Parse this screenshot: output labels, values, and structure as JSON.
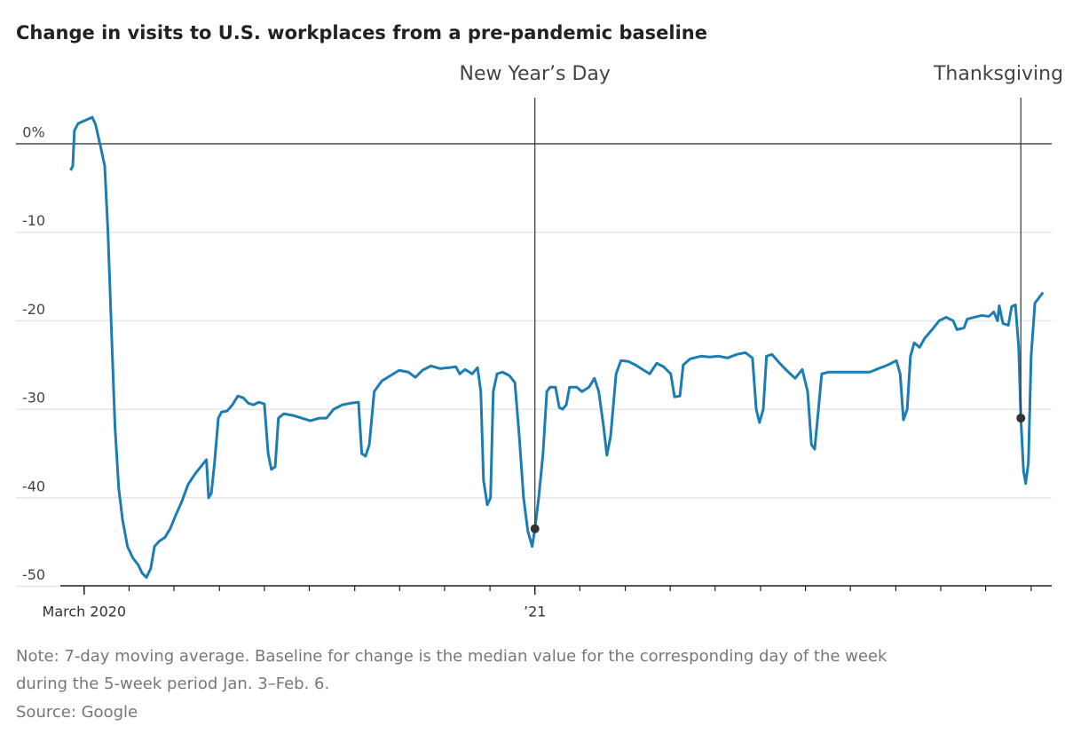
{
  "chart_data": {
    "type": "line",
    "title": "Change in visits to U.S. workplaces from a pre-pandemic baseline",
    "color": "#1c7db3",
    "xlim": [
      2020.041,
      2021.955
    ],
    "ylim": [
      -50.5,
      6
    ],
    "xticks": [
      {
        "value": 2020.167,
        "label": "March 2020"
      },
      {
        "value": 2021.0,
        "label": "’21"
      }
    ],
    "xminorticks": [
      2020.167,
      2020.25,
      2020.333,
      2020.417,
      2020.5,
      2020.583,
      2020.667,
      2020.75,
      2020.833,
      2020.917,
      2021.0,
      2021.083,
      2021.167,
      2021.25,
      2021.333,
      2021.417,
      2021.5,
      2021.583,
      2021.667,
      2021.75,
      2021.833,
      2021.917
    ],
    "yticks": [
      {
        "value": 0,
        "label": "0%"
      },
      -10,
      -20,
      -30,
      -40,
      -50
    ],
    "grid": true,
    "x": [
      2020.142,
      2020.146,
      2020.149,
      2020.156,
      2020.167,
      2020.182,
      2020.188,
      2020.198,
      2020.205,
      2020.211,
      2020.218,
      2020.224,
      2020.231,
      2020.238,
      2020.247,
      2020.257,
      2020.267,
      2020.274,
      2020.282,
      2020.29,
      2020.297,
      2020.306,
      2020.316,
      2020.326,
      2020.336,
      2020.347,
      2020.359,
      2020.372,
      2020.385,
      2020.393,
      2020.397,
      2020.402,
      2020.408,
      2020.415,
      2020.421,
      2020.431,
      2020.441,
      2020.451,
      2020.461,
      2020.47,
      2020.48,
      2020.49,
      2020.5,
      2020.507,
      2020.513,
      2020.52,
      2020.526,
      2020.536,
      2020.553,
      2020.569,
      2020.585,
      2020.602,
      2020.615,
      2020.628,
      2020.644,
      2020.661,
      2020.674,
      2020.68,
      2020.687,
      2020.694,
      2020.703,
      2020.717,
      2020.733,
      2020.749,
      2020.766,
      2020.779,
      2020.792,
      2020.808,
      2020.825,
      2020.841,
      2020.854,
      2020.861,
      2020.871,
      2020.884,
      2020.894,
      2020.9,
      2020.905,
      2020.912,
      2020.918,
      2020.923,
      2020.93,
      2020.94,
      2020.953,
      2020.963,
      2020.971,
      2020.979,
      2020.987,
      2020.995,
      2021.0,
      2021.007,
      2021.015,
      2021.022,
      2021.028,
      2021.038,
      2021.045,
      2021.051,
      2021.058,
      2021.064,
      2021.077,
      2021.087,
      2021.1,
      2021.11,
      2021.118,
      2021.127,
      2021.133,
      2021.14,
      2021.15,
      2021.159,
      2021.173,
      2021.186,
      2021.199,
      2021.212,
      2021.225,
      2021.238,
      2021.251,
      2021.258,
      2021.268,
      2021.274,
      2021.287,
      2021.307,
      2021.323,
      2021.34,
      2021.356,
      2021.373,
      2021.389,
      2021.402,
      2021.409,
      2021.415,
      2021.422,
      2021.428,
      2021.438,
      2021.451,
      2021.465,
      2021.481,
      2021.494,
      2021.504,
      2021.511,
      2021.517,
      2021.524,
      2021.53,
      2021.543,
      2021.57,
      2021.594,
      2021.619,
      2021.635,
      2021.652,
      2021.668,
      2021.675,
      2021.681,
      2021.688,
      2021.694,
      2021.701,
      2021.711,
      2021.72,
      2021.734,
      2021.747,
      2021.76,
      2021.773,
      2021.78,
      2021.793,
      2021.799,
      2021.812,
      2021.825,
      2021.839,
      2021.848,
      2021.855,
      2021.858,
      2021.865,
      2021.875,
      2021.881,
      2021.888,
      2021.894,
      2021.898,
      2021.903,
      2021.907,
      2021.912,
      2021.917,
      2021.924,
      2021.934,
      2021.939
    ],
    "values": [
      -3,
      -2.5,
      1.5,
      2.3,
      2.6,
      3,
      2.2,
      -0.5,
      -2.5,
      -10,
      -22,
      -32,
      -39,
      -42.5,
      -45.5,
      -46.8,
      -47.6,
      -48.5,
      -49,
      -48,
      -45.5,
      -44.9,
      -44.5,
      -43.5,
      -42,
      -40.5,
      -38.5,
      -37.3,
      -36.3,
      -35.7,
      -40,
      -39.5,
      -36,
      -31,
      -30.3,
      -30.2,
      -29.5,
      -28.5,
      -28.7,
      -29.3,
      -29.5,
      -29.2,
      -29.4,
      -35,
      -36.8,
      -36.5,
      -31,
      -30.5,
      -30.7,
      -31,
      -31.3,
      -31,
      -31,
      -30,
      -29.5,
      -29.3,
      -29.2,
      -35,
      -35.3,
      -34,
      -28,
      -26.8,
      -26.2,
      -25.6,
      -25.8,
      -26.4,
      -25.6,
      -25.1,
      -25.4,
      -25.3,
      -25.2,
      -26,
      -25.5,
      -26,
      -25.3,
      -28,
      -38,
      -40.8,
      -40,
      -28,
      -26,
      -25.8,
      -26.2,
      -27,
      -33,
      -40,
      -43.8,
      -45.5,
      -43.5,
      -40,
      -35,
      -28,
      -27.5,
      -27.5,
      -29.8,
      -30,
      -29.5,
      -27.5,
      -27.5,
      -28,
      -27.5,
      -26.5,
      -28,
      -32,
      -35.2,
      -33,
      -26,
      -24.5,
      -24.6,
      -25,
      -25.5,
      -26,
      -24.8,
      -25.2,
      -26,
      -28.6,
      -28.5,
      -25,
      -24.3,
      -24,
      -24.1,
      -24,
      -24.2,
      -23.8,
      -23.6,
      -24.2,
      -30,
      -31.5,
      -30,
      -24,
      -23.8,
      -24.7,
      -25.6,
      -26.5,
      -25.5,
      -28,
      -34,
      -34.5,
      -30,
      -26,
      -25.8,
      -25.8,
      -25.8,
      -25.8,
      -25.4,
      -25,
      -24.5,
      -26,
      -31.2,
      -30,
      -24,
      -22.5,
      -23,
      -22,
      -21,
      -20,
      -19.6,
      -20,
      -21,
      -20.8,
      -19.8,
      -19.6,
      -19.4,
      -19.5,
      -19,
      -20,
      -18.3,
      -20.3,
      -20.5,
      -18.4,
      -18.2,
      -23,
      -31,
      -37,
      -38.4,
      -36,
      -24,
      -18,
      -17.2,
      -16.8
    ],
    "annotations": [
      {
        "label": "New Year’s Day",
        "x": 2021.0,
        "y": -43.5
      },
      {
        "label": "Thanksgiving Day",
        "x": 2021.898,
        "y": -31
      }
    ],
    "note": [
      "Note: 7-day moving average. Baseline for change is the median value for the corresponding day of the week",
      "during the 5-week period Jan. 3–Feb. 6."
    ],
    "source": "Source: Google"
  }
}
